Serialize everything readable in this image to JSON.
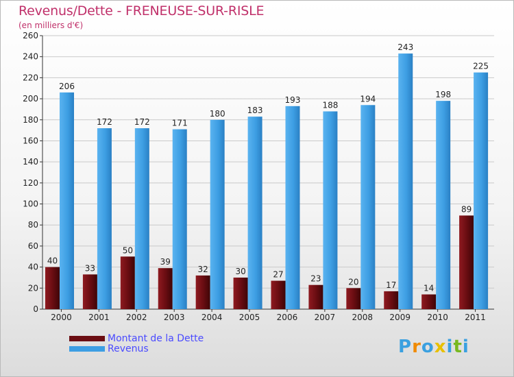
{
  "title": "Revenus/Dette - FRENEUSE-SUR-RISLE",
  "subtitle": "(en milliers d'€)",
  "colors": {
    "dette": "#6b0d12",
    "revenus": "#3d9ee3",
    "title": "#c0306a",
    "legend_text": "#4a4aff"
  },
  "chart_data": {
    "type": "bar",
    "categories": [
      "2000",
      "2001",
      "2002",
      "2003",
      "2004",
      "2005",
      "2006",
      "2007",
      "2008",
      "2009",
      "2010",
      "2011"
    ],
    "series": [
      {
        "name": "Montant de la Dette",
        "values": [
          40,
          33,
          50,
          39,
          32,
          30,
          27,
          23,
          20,
          17,
          14,
          89
        ]
      },
      {
        "name": "Revenus",
        "values": [
          206,
          172,
          172,
          171,
          180,
          183,
          193,
          188,
          194,
          243,
          198,
          225
        ]
      }
    ],
    "ylim": [
      0,
      260
    ],
    "yticks": [
      0,
      20,
      40,
      60,
      80,
      100,
      120,
      140,
      160,
      180,
      200,
      220,
      240,
      260
    ],
    "grid": true,
    "legend_position": "bottom-left"
  },
  "legend": [
    {
      "label": "Montant de la Dette",
      "color": "#6b0d12"
    },
    {
      "label": "Revenus",
      "color": "#3d9ee3"
    }
  ],
  "logo": {
    "text": "Proxiti",
    "letters": [
      "P",
      "r",
      "o",
      "x",
      "i",
      "t",
      "i"
    ],
    "colors": [
      "#3aa0e0",
      "#f08a00",
      "#3aa0e0",
      "#e8c000",
      "#3aa0e0",
      "#78b820",
      "#3aa0e0"
    ]
  }
}
